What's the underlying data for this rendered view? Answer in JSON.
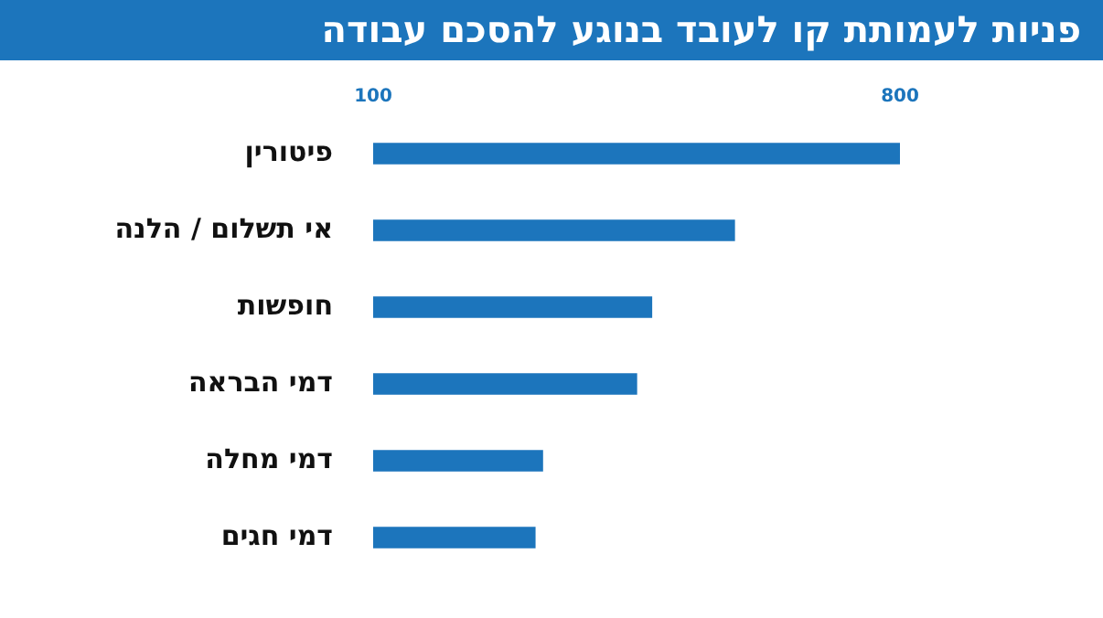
{
  "chart_data": {
    "type": "bar",
    "orientation": "horizontal",
    "title": "פניות לעמותת קו לעובד בנוגע להסכם עבודה",
    "categories": [
      "פיטורין",
      "אי תשלום / הלנה",
      "חופשות",
      "דמי הבראה",
      "דמי מחלה",
      "דמי חגים"
    ],
    "values": [
      800,
      580,
      470,
      450,
      325,
      315
    ],
    "color": "#1c75bc",
    "xlim": [
      100,
      800
    ],
    "xticks": [
      100,
      800
    ]
  }
}
